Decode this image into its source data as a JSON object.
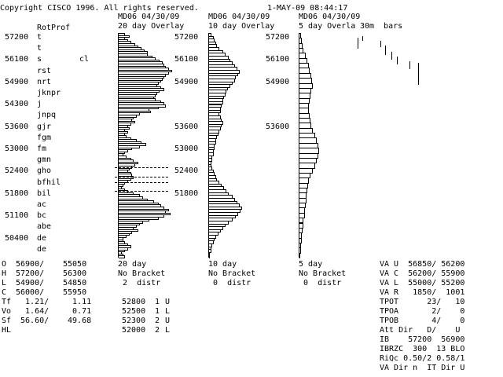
{
  "header": {
    "copyright": "Copyright CISCO 1996. All rights reserved.",
    "datetime": "1-MAY-09 08:44:17"
  },
  "profile": {
    "title": "RotProf",
    "rows": [
      {
        "price": "57200",
        "letters": "t",
        "note": ""
      },
      {
        "price": "",
        "letters": "t",
        "note": ""
      },
      {
        "price": "56100",
        "letters": "s",
        "note": "cl"
      },
      {
        "price": "",
        "letters": "rst",
        "note": ""
      },
      {
        "price": "54900",
        "letters": "nrt",
        "note": ""
      },
      {
        "price": "",
        "letters": "jknpr",
        "note": ""
      },
      {
        "price": "54300",
        "letters": "j",
        "note": ""
      },
      {
        "price": "",
        "letters": "jnpq",
        "note": ""
      },
      {
        "price": "53600",
        "letters": "gjr",
        "note": ""
      },
      {
        "price": "",
        "letters": "fgm",
        "note": ""
      },
      {
        "price": "53000",
        "letters": "fm",
        "note": ""
      },
      {
        "price": "",
        "letters": "gmn",
        "note": ""
      },
      {
        "price": "52400",
        "letters": "gho",
        "note": ""
      },
      {
        "price": "",
        "letters": "bfhil",
        "note": ""
      },
      {
        "price": "51800",
        "letters": "bil",
        "note": ""
      },
      {
        "price": "",
        "letters": "ac",
        "note": ""
      },
      {
        "price": "51100",
        "letters": "bc",
        "note": ""
      },
      {
        "price": "",
        "letters": "abe",
        "note": ""
      },
      {
        "price": "50400",
        "letters": "de",
        "note": ""
      },
      {
        "price": "",
        "letters": "de",
        "note": ""
      }
    ]
  },
  "panel20": {
    "head": "MD06 04/30/09",
    "title": "20 day Overlay",
    "bars": [
      4,
      7,
      4,
      6,
      8,
      11,
      13,
      15,
      17,
      19,
      19,
      22,
      24,
      27,
      29,
      30,
      31,
      33,
      35,
      33,
      31,
      30,
      29,
      28,
      26,
      25,
      28,
      30,
      27,
      25,
      24,
      23,
      24,
      28,
      30,
      31,
      26,
      20,
      21,
      14,
      12,
      10,
      9,
      11,
      8,
      6,
      7,
      4,
      6,
      4,
      5,
      8,
      12,
      15,
      18,
      14,
      9,
      6,
      4,
      3,
      5,
      8,
      10,
      13,
      11,
      9,
      7,
      6,
      8,
      9,
      10,
      8,
      6,
      4,
      3,
      2,
      4,
      6,
      10,
      14,
      16,
      19,
      23,
      26,
      28,
      30,
      33,
      31,
      34,
      30,
      26,
      20,
      16,
      14,
      12,
      10,
      13,
      9,
      7,
      5,
      3,
      3,
      4,
      6,
      8,
      6,
      4,
      2,
      3,
      4
    ],
    "dashed_lines": [
      52800,
      52500,
      52300,
      52000
    ],
    "footer": [
      "20 day",
      "No Bracket",
      " 2  distr"
    ],
    "distr": [
      {
        "price": "52800",
        "count": "1",
        "side": "U"
      },
      {
        "price": "52500",
        "count": "1",
        "side": "L"
      },
      {
        "price": "52300",
        "count": "2",
        "side": "U"
      },
      {
        "price": "52000",
        "count": "2",
        "side": "L"
      }
    ]
  },
  "panel10": {
    "head": "MD06 04/30/09",
    "title": "10 day Overlay",
    "prices": [
      "57200",
      "56100",
      "54900",
      "53600",
      "53000",
      "52400",
      "51800"
    ],
    "bars": [
      2,
      4,
      5,
      6,
      7,
      9,
      12,
      14,
      17,
      18,
      20,
      22,
      24,
      26,
      25,
      23,
      22,
      20,
      18,
      16,
      15,
      14,
      13,
      12,
      12,
      11,
      10,
      10,
      9,
      10,
      11,
      12,
      11,
      10,
      9,
      8,
      7,
      6,
      6,
      5,
      5,
      4,
      4,
      3,
      3,
      2,
      2,
      3,
      4,
      5,
      6,
      7,
      9,
      11,
      13,
      15,
      17,
      20,
      22,
      24,
      26,
      28,
      27,
      25,
      23,
      20,
      17,
      14,
      12,
      10,
      8,
      6,
      5,
      4,
      3,
      2,
      2,
      1,
      1
    ],
    "footer": [
      "10 day",
      "No Bracket",
      " 0  distr"
    ]
  },
  "panel5": {
    "head": "MD06 04/30/09",
    "title": "5 day Overla",
    "prices": [
      "57200",
      "56100",
      "54900",
      "53600"
    ],
    "bars": [
      2,
      3,
      4,
      5,
      7,
      9,
      11,
      12,
      14,
      15,
      16,
      14,
      13,
      12,
      11,
      11,
      12,
      13,
      14,
      16,
      18,
      20,
      22,
      23,
      22,
      20,
      18,
      16,
      13,
      11,
      10,
      9,
      8,
      8,
      7,
      6,
      6,
      5,
      5,
      4,
      3,
      3,
      2,
      2,
      1
    ],
    "footer": [
      "5 day",
      "No Bracket",
      " 0  distr"
    ]
  },
  "bars30": {
    "title": "30m  bars"
  },
  "ohlc": [
    {
      "label": "O",
      "v1": "56900/",
      "v2": "55050"
    },
    {
      "label": "H",
      "v1": "57200/",
      "v2": "56300"
    },
    {
      "label": "L",
      "v1": "54900/",
      "v2": "54850"
    },
    {
      "label": "C",
      "v1": "56000/",
      "v2": "55950"
    },
    {
      "label": "Tf",
      "v1": "  1.21/",
      "v2": "  1.11"
    },
    {
      "label": "Vo",
      "v1": "  1.64/",
      "v2": "  0.71"
    },
    {
      "label": "Sf",
      "v1": " 56.60/",
      "v2": " 49.68"
    },
    {
      "label": "HL",
      "v1": "",
      "v2": ""
    }
  ],
  "stats": [
    "VA U  56850/ 56200",
    "VA C  56200/ 55900",
    "VA L  55000/ 55200",
    "VA R   1850/  1001",
    "TPOT      23/   10",
    "TPOA       2/    0",
    "TPOB       4/    0",
    "Att Dir   D/    U",
    "IB    57200  56900",
    "IBRZC  300  13 BLO",
    "RiQc 0.50/2 0.58/1",
    "VA Dir n  IT Dir U"
  ]
}
